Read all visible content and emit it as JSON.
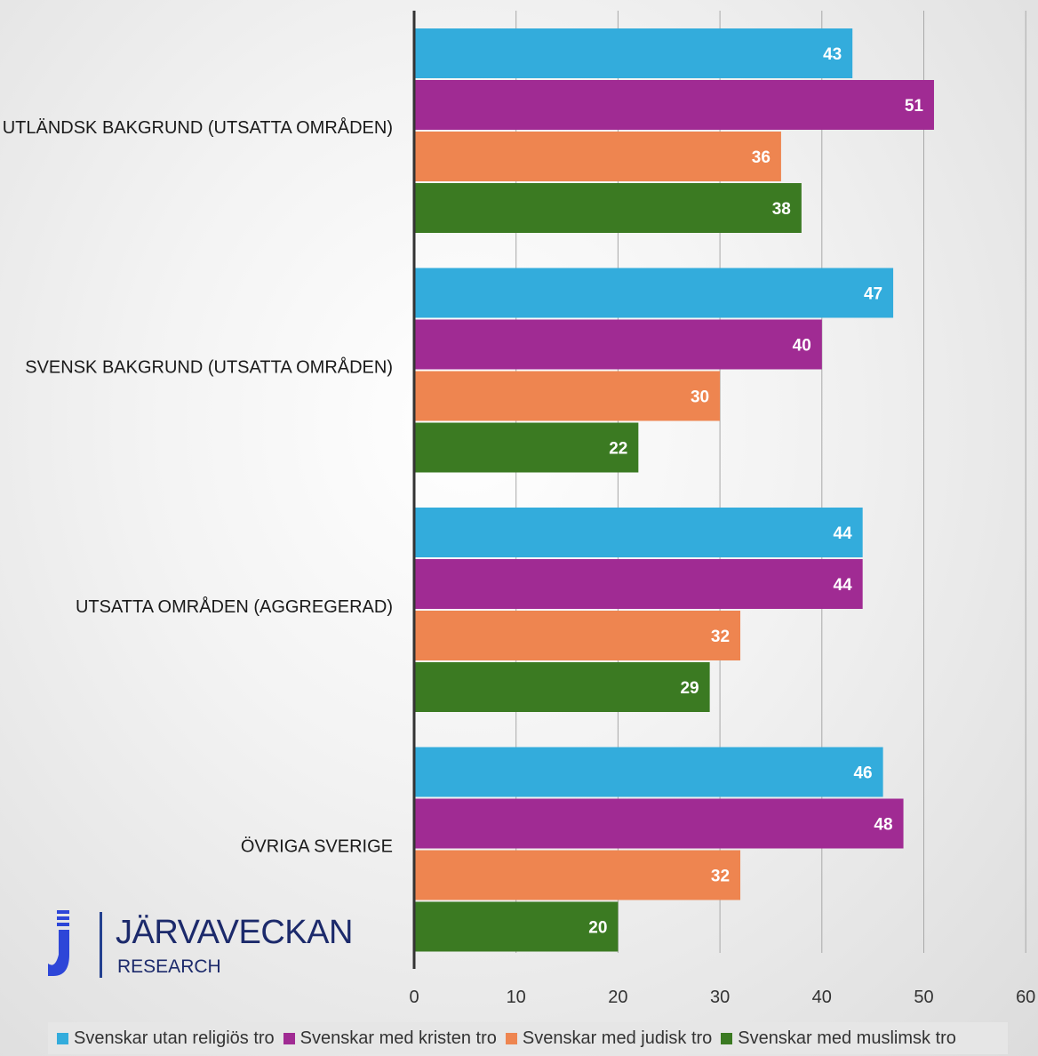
{
  "chart_data": {
    "type": "bar",
    "orientation": "horizontal",
    "categories": [
      "UTLÄNDSK BAKGRUND (UTSATTA OMRÅDEN)",
      "SVENSK BAKGRUND (UTSATTA OMRÅDEN)",
      "UTSATTA OMRÅDEN (AGGREGERAD)",
      "ÖVRIGA SVERIGE"
    ],
    "series": [
      {
        "name": "Svenskar utan religiös tro",
        "color": "#33acdc",
        "values": [
          43,
          47,
          44,
          46
        ]
      },
      {
        "name": "Svenskar med kristen tro",
        "color": "#a02b93",
        "values": [
          51,
          40,
          44,
          48
        ]
      },
      {
        "name": "Svenskar med judisk tro",
        "color": "#ee8550",
        "values": [
          36,
          30,
          32,
          32
        ]
      },
      {
        "name": "Svenskar med muslimsk tro",
        "color": "#3b7a22",
        "values": [
          38,
          22,
          29,
          20
        ]
      }
    ],
    "xlim": [
      0,
      60
    ],
    "xticks": [
      "0",
      "10",
      "20",
      "30",
      "40",
      "50",
      "60"
    ],
    "grid": true,
    "legend_position": "bottom"
  },
  "logo": {
    "name": "JÄRVAVECKAN",
    "sub": "RESEARCH"
  }
}
